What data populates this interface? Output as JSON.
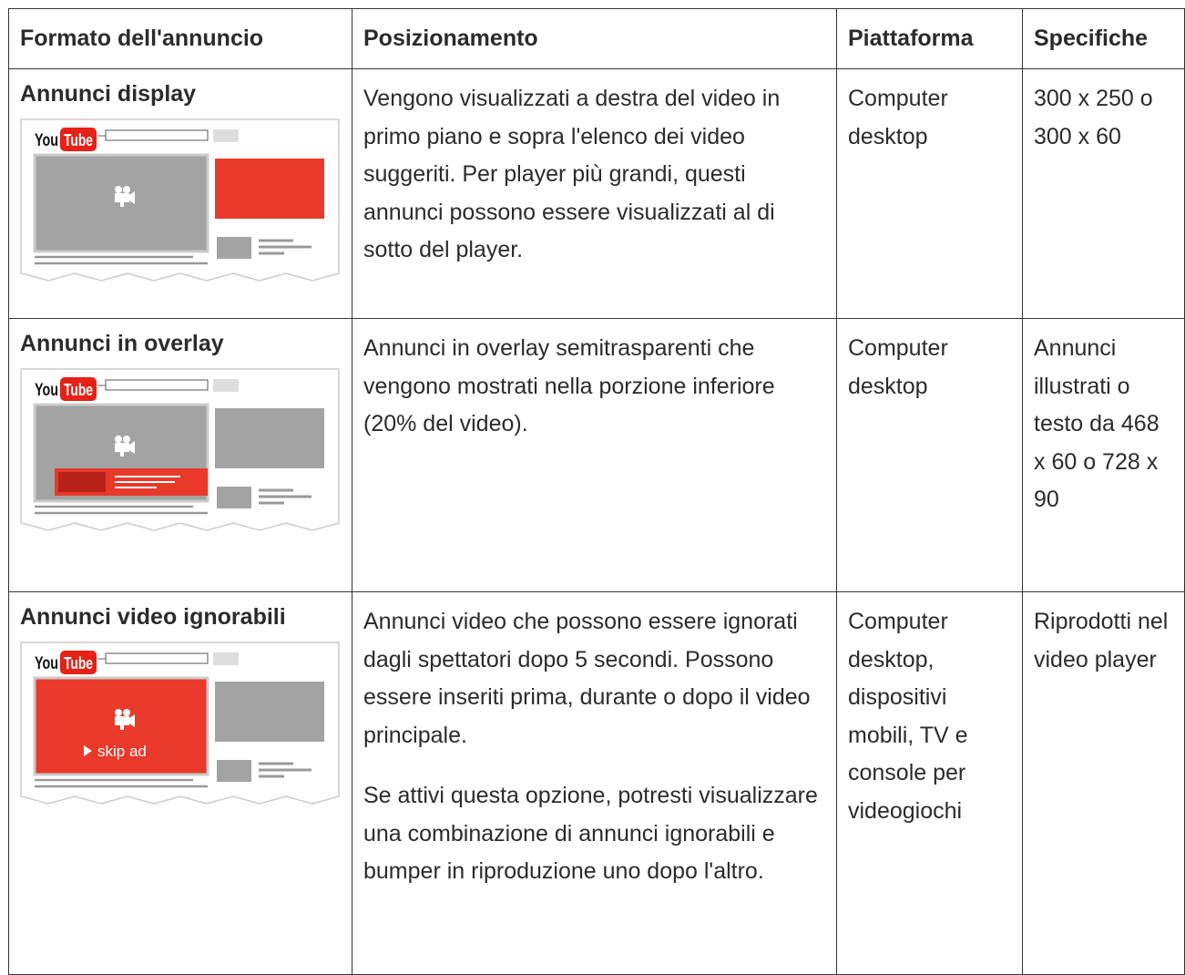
{
  "header": [
    "Formato dell'annuncio",
    "Posizionamento",
    "Piattaforma",
    "Specifiche"
  ],
  "rows": [
    {
      "format": "Annunci display",
      "illustration": {
        "logo_you": "You",
        "logo_tube": "Tube"
      },
      "positioning": [
        "Vengono visualizzati a destra del video in primo piano e sopra l'elenco dei video suggeriti. Per player più grandi, questi annunci possono essere visualizzati al di sotto del player."
      ],
      "platform": "Computer desktop",
      "specs": "300 x 250 o 300 x 60"
    },
    {
      "format": "Annunci in overlay",
      "illustration": {
        "logo_you": "You",
        "logo_tube": "Tube"
      },
      "positioning": [
        "Annunci in overlay semitrasparenti che vengono mostrati nella porzione inferiore (20% del video)."
      ],
      "platform": "Computer desktop",
      "specs": "Annunci illustrati o testo da 468 x 60 o 728 x 90"
    },
    {
      "format": "Annunci video ignorabili",
      "illustration": {
        "logo_you": "You",
        "logo_tube": "Tube",
        "skip_label": "skip ad"
      },
      "positioning": [
        "Annunci video che possono essere ignorati dagli spettatori dopo 5 secondi. Possono essere inseriti prima, durante o dopo il video principale.",
        "Se attivi questa opzione, potresti visualizzare una combinazione di annunci ignorabili e bumper in riproduzione uno dopo l'altro."
      ],
      "platform": "Computer desktop, dispositivi mobili, TV e console per videogiochi",
      "specs": "Riprodotti nel video player"
    }
  ]
}
